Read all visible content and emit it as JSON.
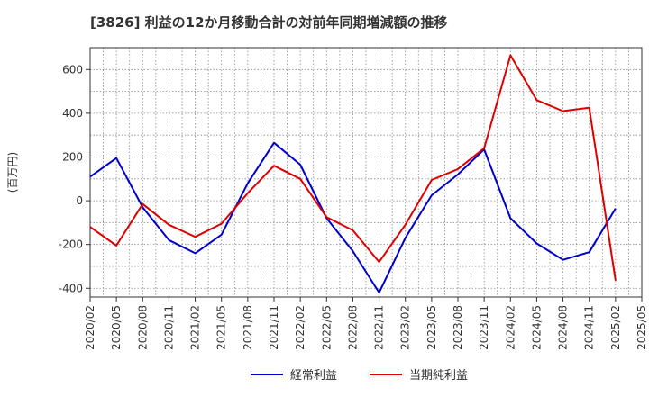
{
  "chart_data": {
    "type": "line",
    "title": "[3826]  利益の12か月移動合計の対前年同期増減額の推移",
    "ylabel": "(百万円)",
    "xlabel": "",
    "ylim": [
      -440,
      700
    ],
    "yticks": [
      600,
      400,
      200,
      0,
      -200,
      -400
    ],
    "ytick_labels": [
      "600",
      "400",
      "200",
      "0",
      "-200",
      "-400"
    ],
    "categories": [
      "2020/02",
      "2020/05",
      "2020/08",
      "2020/11",
      "2021/02",
      "2021/05",
      "2021/08",
      "2021/11",
      "2022/02",
      "2022/05",
      "2022/08",
      "2022/11",
      "2023/02",
      "2023/05",
      "2023/08",
      "2023/11",
      "2024/02",
      "2024/05",
      "2024/08",
      "2024/11",
      "2025/02",
      "2025/05"
    ],
    "grid": true,
    "legend_position": "bottom",
    "series": [
      {
        "name": "経常利益",
        "color": "#0000cc",
        "values": [
          110,
          195,
          -30,
          -180,
          -240,
          -155,
          80,
          265,
          165,
          -80,
          -230,
          -420,
          -170,
          25,
          120,
          235,
          -80,
          -195,
          -270,
          -235,
          -35,
          null
        ]
      },
      {
        "name": "当期純利益",
        "color": "#dd0000",
        "values": [
          -120,
          -205,
          -15,
          -110,
          -165,
          -105,
          35,
          160,
          100,
          -75,
          -135,
          -280,
          -110,
          95,
          145,
          240,
          665,
          460,
          410,
          425,
          -365,
          null
        ]
      }
    ]
  }
}
